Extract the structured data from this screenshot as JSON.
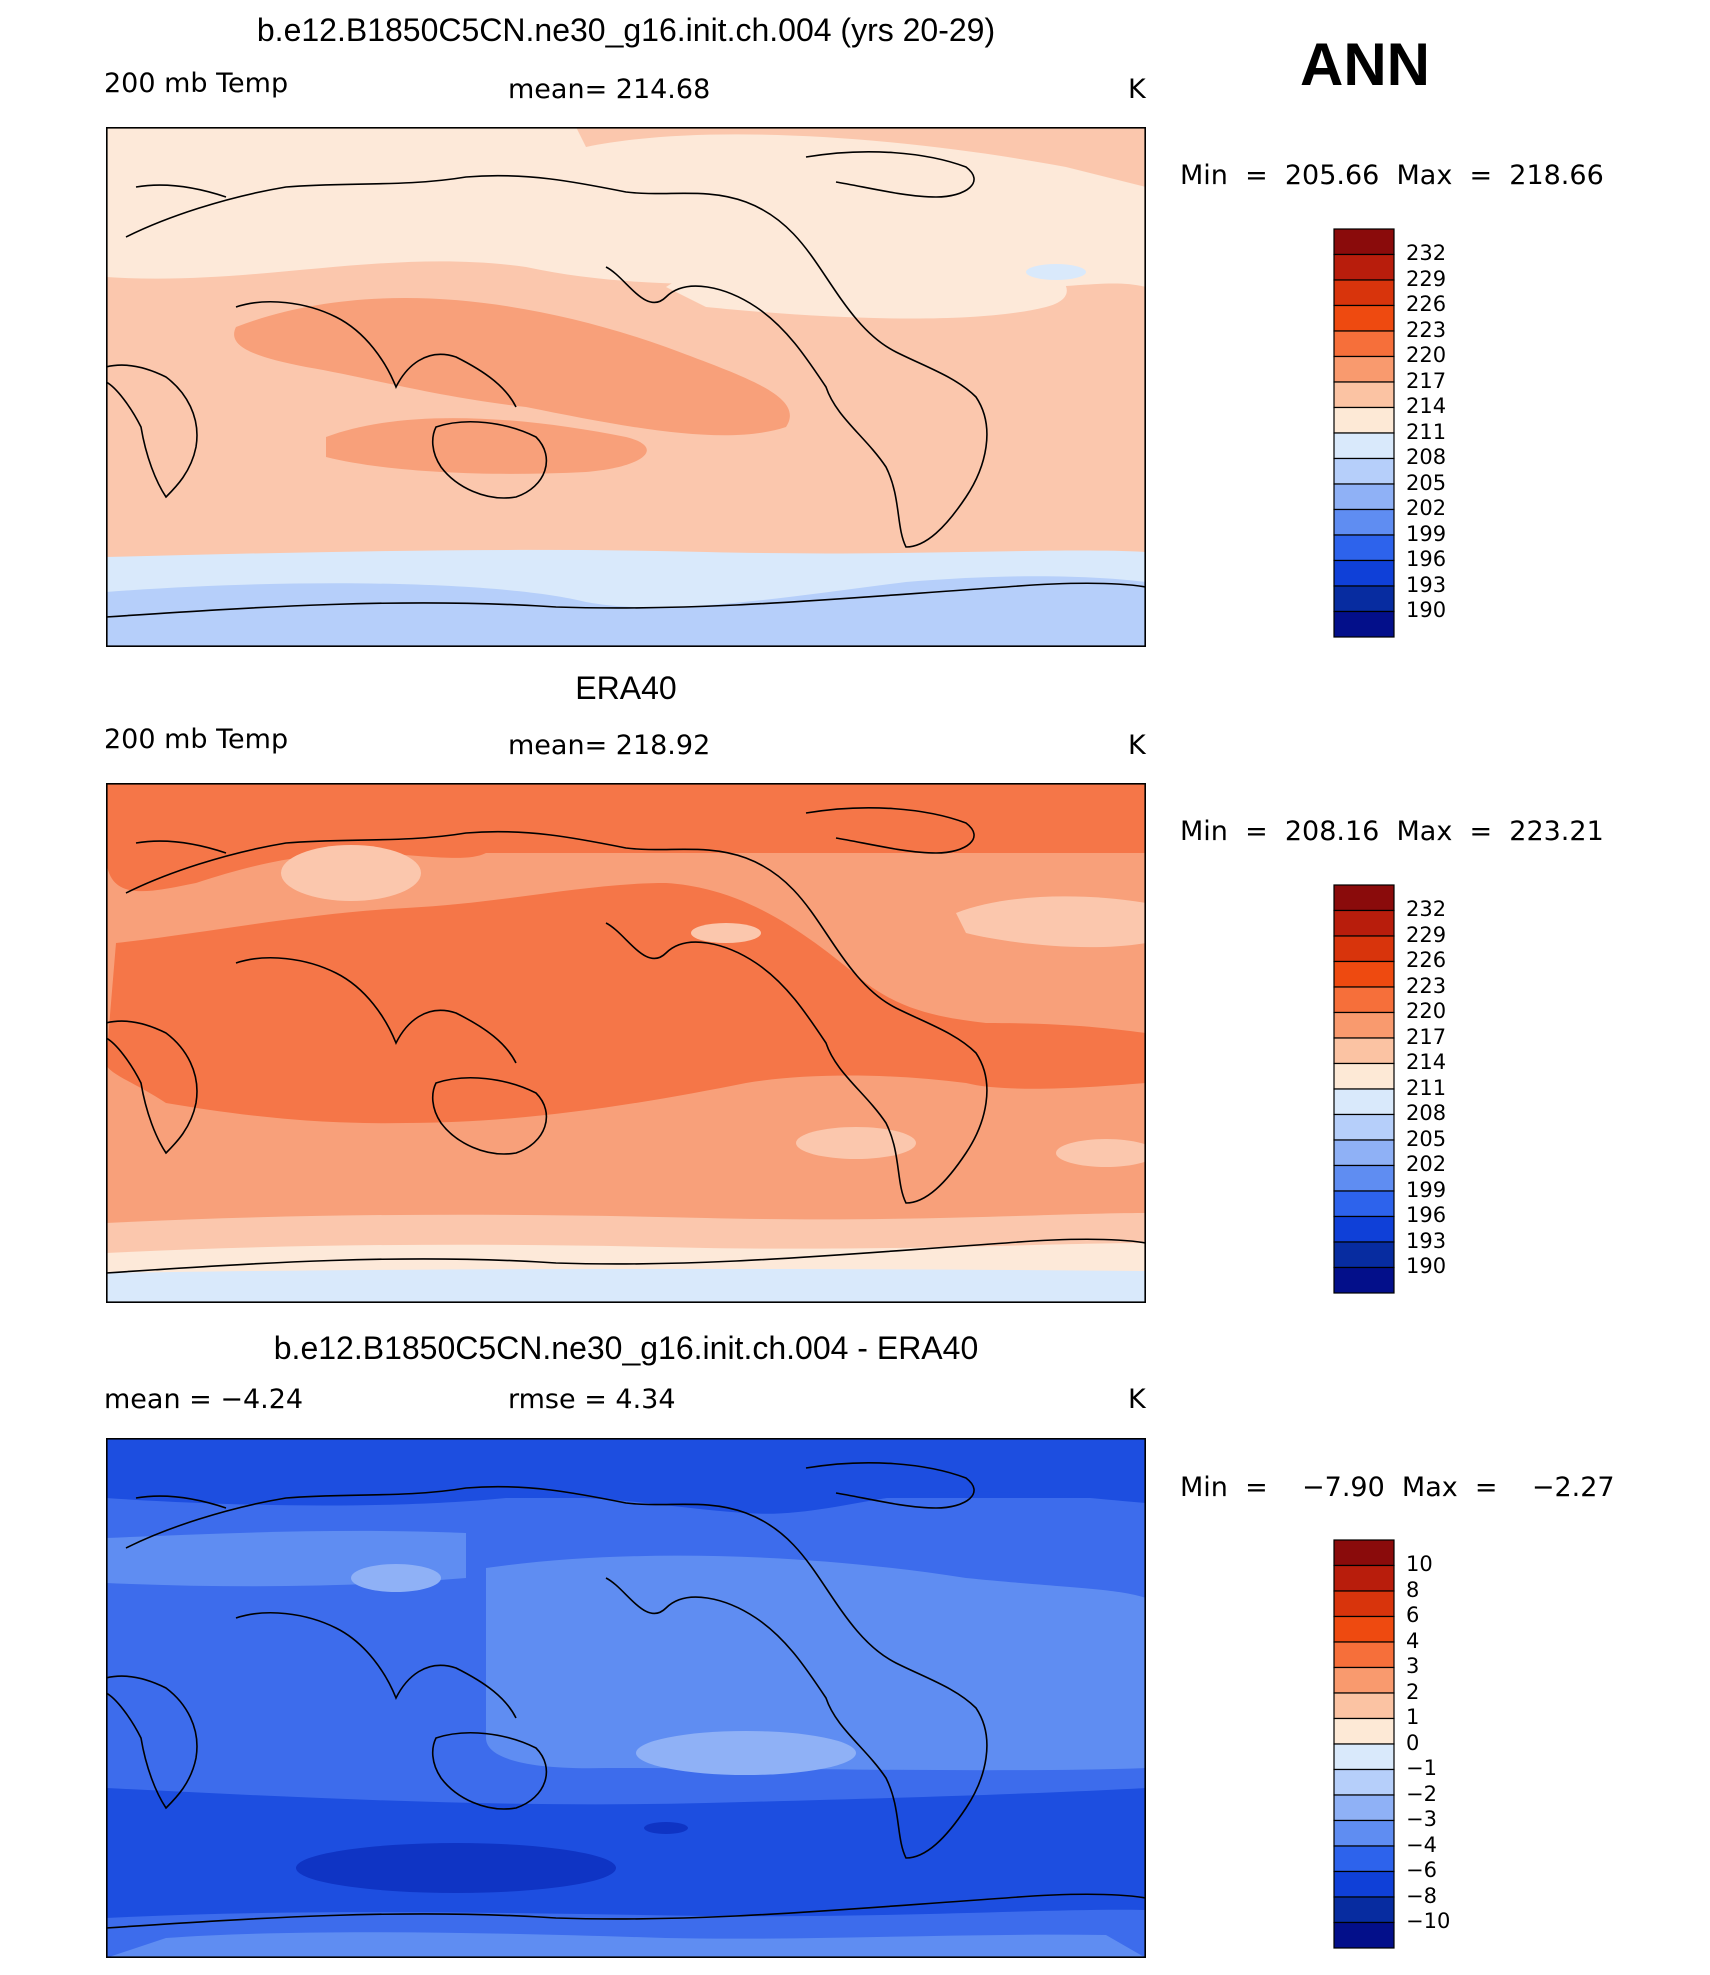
{
  "season": "ANN",
  "panels": [
    {
      "title": "b.e12.B1850C5CN.ne30_g16.init.ch.004 (yrs 20-29)",
      "left_label": "200 mb Temp",
      "center_label": "mean=  214.68",
      "units": "K",
      "minmax": "Min  =  205.66  Max  =  218.66",
      "colorbar_labels": [
        "232",
        "229",
        "226",
        "223",
        "220",
        "217",
        "214",
        "211",
        "208",
        "205",
        "202",
        "199",
        "196",
        "193",
        "190"
      ]
    },
    {
      "title": "ERA40",
      "left_label": "200 mb Temp",
      "center_label": "mean=  218.92",
      "units": "K",
      "minmax": "Min  =  208.16  Max  =  223.21",
      "colorbar_labels": [
        "232",
        "229",
        "226",
        "223",
        "220",
        "217",
        "214",
        "211",
        "208",
        "205",
        "202",
        "199",
        "196",
        "193",
        "190"
      ]
    },
    {
      "title": "b.e12.B1850C5CN.ne30_g16.init.ch.004 - ERA40",
      "left_label": "mean  =    −4.24",
      "center_label": "rmse  =     4.34",
      "units": "K",
      "minmax": "Min  =    −7.90  Max  =    −2.27",
      "colorbar_labels": [
        "10",
        "8",
        "6",
        "4",
        "3",
        "2",
        "1",
        "0",
        "−1",
        "−2",
        "−3",
        "−4",
        "−6",
        "−8",
        "−10"
      ]
    }
  ],
  "colorbar_colors": [
    "#8a0b0b",
    "#b81d0c",
    "#d8340c",
    "#ee4a10",
    "#f66f3a",
    "#f99a6e",
    "#fbc3a3",
    "#fde9d6",
    "#d9e9fb",
    "#b6cffa",
    "#8fb1f6",
    "#5f8df2",
    "#2d63ec",
    "#0f40d8",
    "#072ca0",
    "#030f8a"
  ],
  "colors": {
    "t_232": "#8a0b0b",
    "t_223": "#ee4a10",
    "t_220": "#f57648",
    "t_217": "#f8a07a",
    "t_214": "#fbc7ad",
    "t_211": "#fde9d9",
    "t_208": "#d9e9fb",
    "t_205": "#b6cffa",
    "d_m2": "#8fb1f6",
    "d_m3": "#5f8df2",
    "d_m4": "#3d6cec",
    "d_m6": "#1d4ee0",
    "d_m8": "#0f34c4"
  }
}
